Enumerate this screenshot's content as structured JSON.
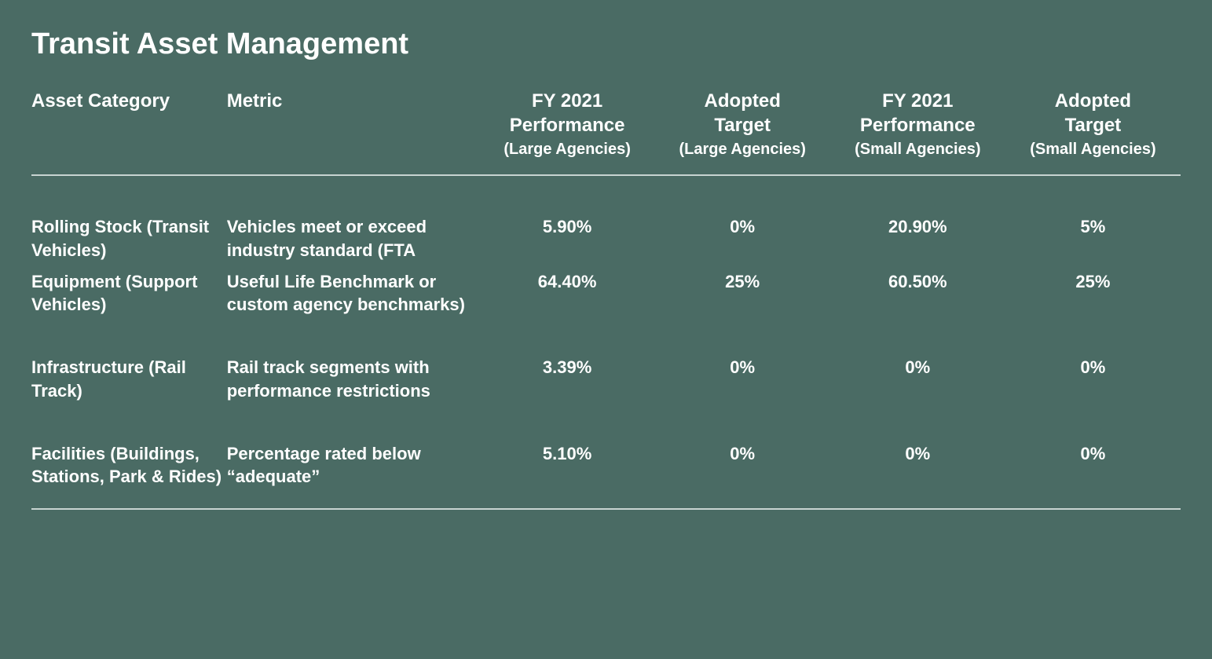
{
  "title": "Transit Asset Management",
  "colors": {
    "background": "#4a6b64",
    "text": "#ffffff",
    "divider": "#c8d4d1"
  },
  "columns": {
    "asset_category": "Asset Category",
    "metric": "Metric",
    "perf_large": {
      "line1": "FY 2021",
      "line2": "Performance",
      "sub": "(Large Agencies)"
    },
    "target_large": {
      "line1": "Adopted",
      "line2": "Target",
      "sub": "(Large Agencies)"
    },
    "perf_small": {
      "line1": "FY 2021",
      "line2": "Performance",
      "sub": "(Small  Agencies)"
    },
    "target_small": {
      "line1": "Adopted",
      "line2": "Target",
      "sub": "(Small  Agencies)"
    }
  },
  "rows": [
    {
      "category": "Rolling Stock (Transit Vehicles)",
      "metric_top": "Vehicles meet or exceed industry standard (FTA",
      "perf_large": "5.90%",
      "target_large": "0%",
      "perf_small": "20.90%",
      "target_small": "5%"
    },
    {
      "category": "Equipment (Support Vehicles)",
      "metric_top": "Useful Life Benchmark or custom agency benchmarks)",
      "perf_large": "64.40%",
      "target_large": "25%",
      "perf_small": "60.50%",
      "target_small": "25%"
    },
    {
      "category": "Infrastructure (Rail Track)",
      "metric_top": "Rail track segments with performance restrictions",
      "perf_large": "3.39%",
      "target_large": "0%",
      "perf_small": "0%",
      "target_small": "0%"
    },
    {
      "category": "Facilities (Buildings, Stations, Park & Rides)",
      "metric_top": "Percentage rated below “adequate”",
      "perf_large": "5.10%",
      "target_large": "0%",
      "perf_small": "0%",
      "target_small": "0%"
    }
  ]
}
